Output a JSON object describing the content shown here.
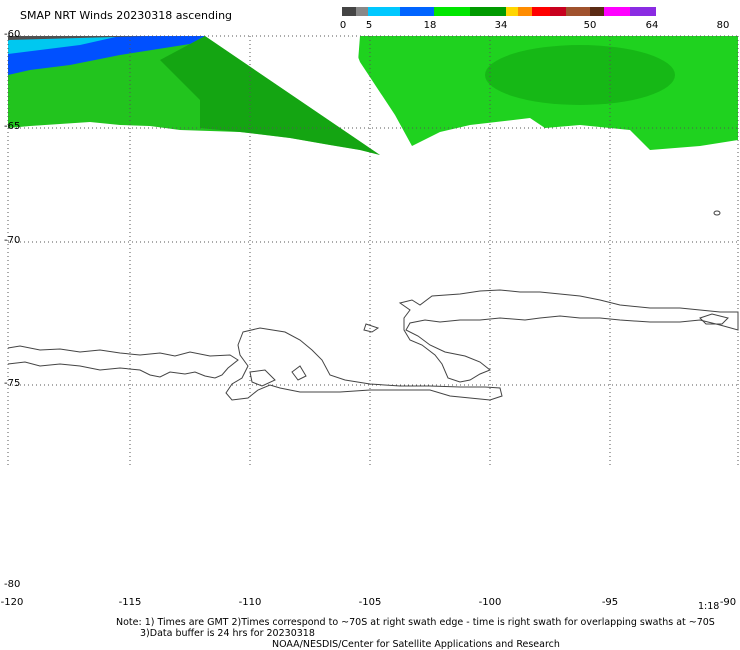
{
  "title": "SMAP NRT Winds 20230318 ascending",
  "colorbar": {
    "labels": [
      "0",
      "5",
      "18",
      "34",
      "50",
      "64",
      "80"
    ],
    "segments": [
      {
        "color": "#444444"
      },
      {
        "color": "#888888"
      },
      {
        "color": "#00c8ff"
      },
      {
        "color": "#0064ff"
      },
      {
        "color": "#00e600"
      },
      {
        "color": "#009a00"
      },
      {
        "color": "#ffd600"
      },
      {
        "color": "#ff8c00"
      },
      {
        "color": "#ff0000"
      },
      {
        "color": "#c8001e"
      },
      {
        "color": "#a0522d"
      },
      {
        "color": "#5a2a14"
      },
      {
        "color": "#ff00ff"
      },
      {
        "color": "#8a2be2"
      }
    ]
  },
  "axes": {
    "lat_labels": [
      "-60",
      "-65",
      "-70",
      "-75",
      "-80"
    ],
    "lon_labels": [
      "-120",
      "-115",
      "-110",
      "-105",
      "-100",
      "-95",
      "-90"
    ]
  },
  "time_label": "1:18",
  "notes": {
    "line1": "Note: 1) Times are GMT 2)Times correspond to ~70S at right swath edge - time is right swath for overlapping swaths at ~70S",
    "line2": "3)Data buffer is 24 hrs for 20230318",
    "line3": "NOAA/NESDIS/Center for Satellite Applications and Research"
  }
}
